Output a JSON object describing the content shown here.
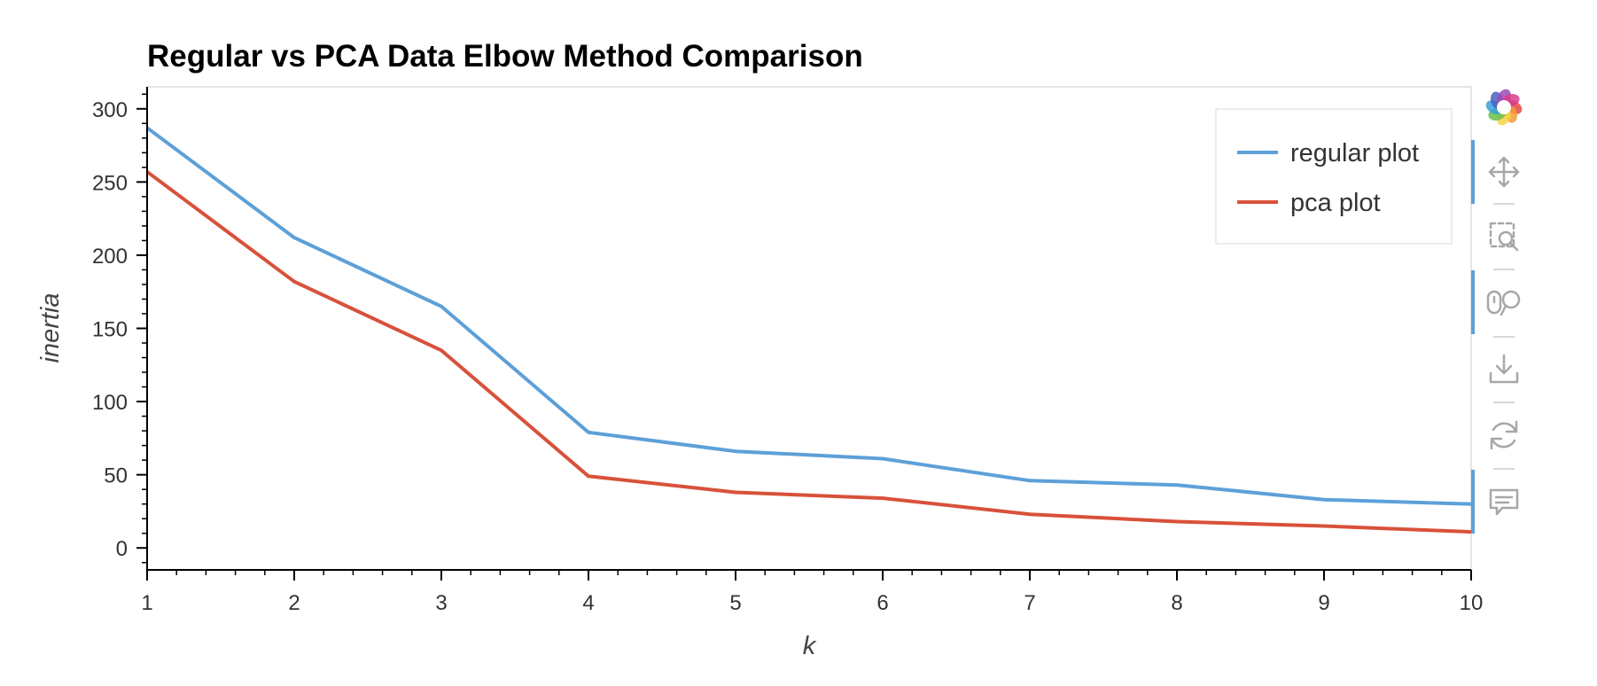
{
  "chart_data": {
    "type": "line",
    "title": "Regular vs PCA Data Elbow Method Comparison",
    "xlabel": "k",
    "ylabel": "inertia",
    "x": [
      1,
      2,
      3,
      4,
      5,
      6,
      7,
      8,
      9,
      10
    ],
    "xticks": [
      1,
      2,
      3,
      4,
      5,
      6,
      7,
      8,
      9,
      10
    ],
    "yticks": [
      0,
      50,
      100,
      150,
      200,
      250,
      300
    ],
    "xlim": [
      1,
      10
    ],
    "ylim": [
      -15,
      315
    ],
    "grid": false,
    "legend_position": "top-right",
    "series": [
      {
        "name": "regular plot",
        "color": "#5da0d8",
        "values": [
          287,
          212,
          165,
          79,
          66,
          61,
          46,
          43,
          33,
          30
        ]
      },
      {
        "name": "pca plot",
        "color": "#d8513a",
        "values": [
          257,
          182,
          135,
          49,
          38,
          34,
          23,
          18,
          15,
          11
        ]
      }
    ]
  },
  "toolbar": {
    "active_color": "#5da0d8",
    "icon_color": "#a7a7a7",
    "tools": [
      {
        "name": "bokeh-logo-icon",
        "kind": "logo",
        "active": false
      },
      {
        "name": "pan-tool",
        "kind": "pan",
        "active": true
      },
      {
        "name": "box-zoom-tool",
        "kind": "boxzoom",
        "active": false
      },
      {
        "name": "wheel-zoom-tool",
        "kind": "wheelzoom",
        "active": true
      },
      {
        "name": "save-tool",
        "kind": "save",
        "active": false
      },
      {
        "name": "reset-tool",
        "kind": "reset",
        "active": false
      },
      {
        "name": "hover-tool",
        "kind": "hover",
        "active": true
      }
    ]
  }
}
